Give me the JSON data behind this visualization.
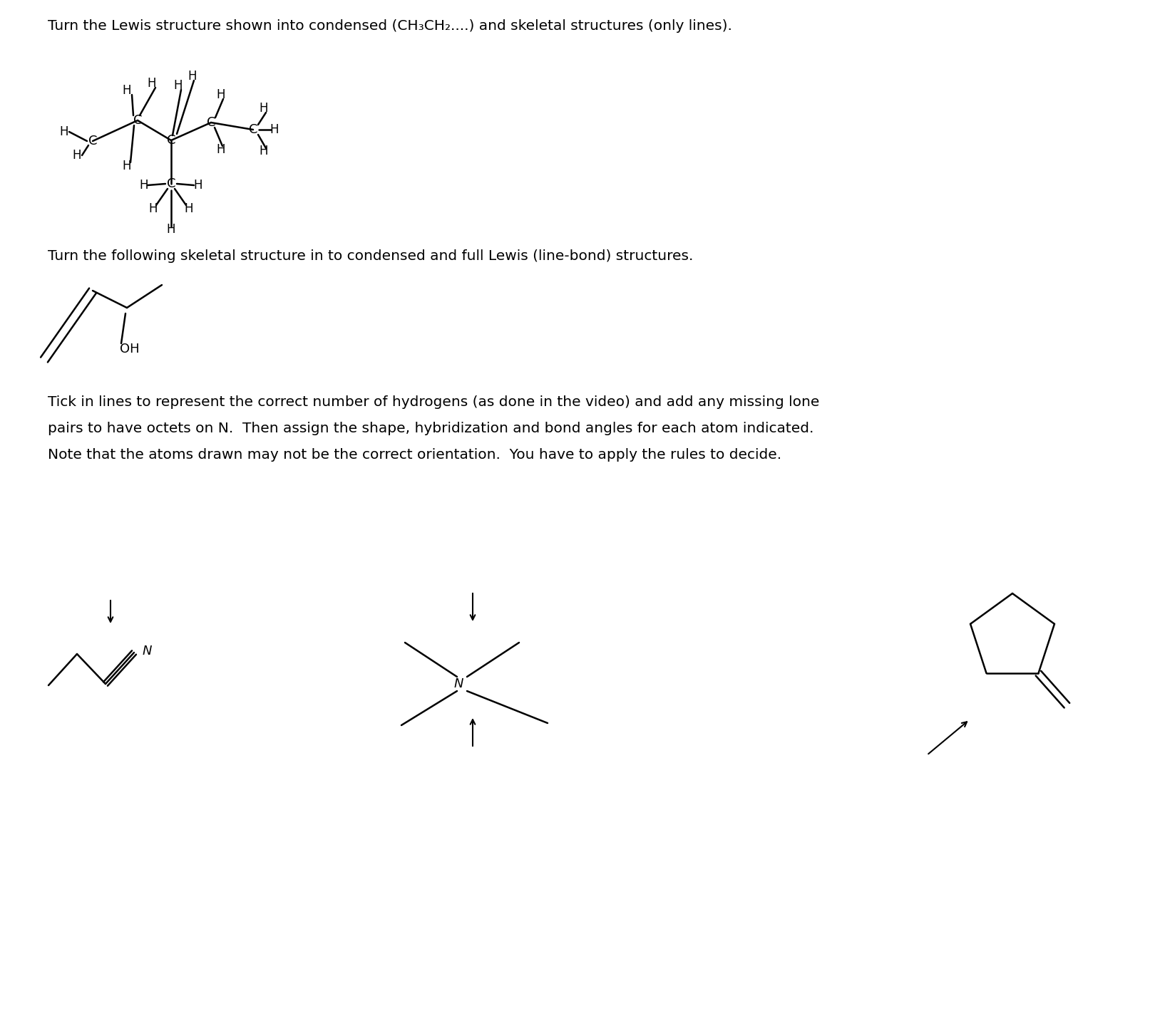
{
  "background_color": "#ffffff",
  "text1": "Turn the Lewis structure shown into condensed (CH₃CH₂....) and skeletal structures (only lines).",
  "text2": "Turn the following skeletal structure in to condensed and full Lewis (line-bond) structures.",
  "text3_line1": "Tick in lines to represent the correct number of hydrogens (as done in the video) and add any missing lone",
  "text3_line2": "pairs to have octets on N.  Then assign the shape, hybridization and bond angles for each atom indicated.",
  "text3_line3": "Note that the atoms drawn may not be the correct orientation.  You have to apply the rules to decide.",
  "font_size": 14.5,
  "lw": 1.8
}
